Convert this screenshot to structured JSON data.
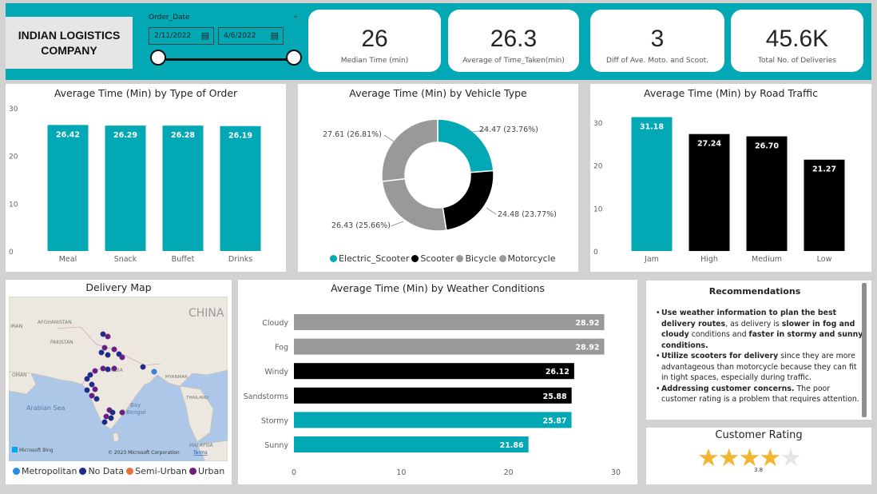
{
  "company": {
    "line1": "INDIAN LOGISTICS",
    "line2": "COMPANY"
  },
  "slicer": {
    "title": "Order_Date",
    "start": "2/11/2022",
    "end": "4/6/2022"
  },
  "kpis": [
    {
      "value": "26",
      "label": "Median Time (min)"
    },
    {
      "value": "26.3",
      "label": "Average of Time_Taken(min)"
    },
    {
      "value": "3",
      "label": "Diff of Ave. Moto. and Scoot."
    },
    {
      "value": "45.6K",
      "label": "Total No. of Deliveries"
    }
  ],
  "colors": {
    "teal": "#02a8b4",
    "black": "#000000",
    "gray": "#999999",
    "semi_urban": "#e8703a",
    "urban": "#6b1d84",
    "metropolitan": "#2b8ce6",
    "no_data": "#1b2d8a"
  },
  "map": {
    "title": "Delivery Map",
    "labels": [
      "CHINA",
      "IRAN",
      "AFGHANISTAN",
      "PAKISTAN",
      "OMAN",
      "INDIA",
      "MYANMAR",
      "THAILAND",
      "MALAYSIA",
      "Arabian Sea",
      "Bay",
      "of Bengal"
    ],
    "credit": "© 2023 Microsoft Corporation",
    "terms": "Terms",
    "bing": "Microsoft Bing",
    "legend": [
      {
        "label": "Metropolitan",
        "color": "#2b8ce6"
      },
      {
        "label": "No Data",
        "color": "#1b2d8a"
      },
      {
        "label": "Semi-Urban",
        "color": "#e8703a"
      },
      {
        "label": "Urban",
        "color": "#6b1d84"
      }
    ]
  },
  "recommendations": {
    "title": "Recommendations",
    "items": [
      {
        "parts": [
          [
            "b",
            "Use weather information to plan the best delivery routes"
          ],
          [
            "n",
            ", as delivery is "
          ],
          [
            "b",
            "slower in fog and cloudy"
          ],
          [
            "n",
            " conditions and "
          ],
          [
            "b",
            "faster in stormy and sunny conditions."
          ]
        ]
      },
      {
        "parts": [
          [
            "b",
            "Utilize scooters for delivery"
          ],
          [
            "n",
            " since they are more advantageous than motorcycle because they can fit in tight spaces, especially during traffic."
          ]
        ]
      },
      {
        "parts": [
          [
            "b",
            "Addressing customer concerns."
          ],
          [
            "n",
            " The poor customer rating is a problem that requires attention."
          ]
        ]
      }
    ]
  },
  "rating": {
    "title": "Customer Rating",
    "value": 3.8,
    "value_label": "3.8",
    "max": 5
  },
  "chart_data": [
    {
      "type": "bar",
      "title": "Average Time (Min) by Type of Order",
      "categories": [
        "Meal",
        "Snack",
        "Buffet",
        "Drinks"
      ],
      "values": [
        26.42,
        26.29,
        26.28,
        26.19
      ],
      "labels": [
        "26.42",
        "26.29",
        "26.28",
        "26.19"
      ],
      "colors": [
        "#02a8b4",
        "#02a8b4",
        "#02a8b4",
        "#02a8b4"
      ],
      "yticks": [
        "0",
        "10",
        "20",
        "30"
      ],
      "ylim": [
        0,
        30
      ]
    },
    {
      "type": "pie",
      "title": "Average Time (Min) by Vehicle Type",
      "slices": [
        {
          "name": "Electric_Scooter",
          "value": 24.47,
          "label": "24.47 (23.76%)",
          "color": "#02a8b4"
        },
        {
          "name": "Scooter",
          "value": 24.48,
          "label": "24.48 (23.77%)",
          "color": "#000000"
        },
        {
          "name": "Bicycle",
          "value": 26.43,
          "label": "26.43 (25.66%)",
          "color": "#999999"
        },
        {
          "name": "Motorcycle",
          "value": 27.61,
          "label": "27.61 (26.81%)",
          "color": "#999999"
        }
      ]
    },
    {
      "type": "bar",
      "title": "Average Time (Min) by Road Traffic",
      "categories": [
        "Jam",
        "High",
        "Medium",
        "Low"
      ],
      "values": [
        31.18,
        27.24,
        26.7,
        21.27
      ],
      "labels": [
        "31.18",
        "27.24",
        "26.70",
        "21.27"
      ],
      "colors": [
        "#02a8b4",
        "#000000",
        "#000000",
        "#000000"
      ],
      "yticks": [
        "0",
        "10",
        "20",
        "30"
      ],
      "ylim": [
        0,
        35
      ]
    },
    {
      "type": "bar",
      "orientation": "horizontal",
      "title": "Average Time (Min) by Weather Conditions",
      "categories": [
        "Cloudy",
        "Fog",
        "Windy",
        "Sandstorms",
        "Stormy",
        "Sunny"
      ],
      "values": [
        28.92,
        28.92,
        26.12,
        25.88,
        25.87,
        21.86
      ],
      "labels": [
        "28.92",
        "28.92",
        "26.12",
        "25.88",
        "25.87",
        "21.86"
      ],
      "colors": [
        "#999999",
        "#999999",
        "#000000",
        "#000000",
        "#02a8b4",
        "#02a8b4"
      ],
      "xticks": [
        "0",
        "10",
        "20",
        "30"
      ],
      "xlim": [
        0,
        30
      ]
    }
  ]
}
